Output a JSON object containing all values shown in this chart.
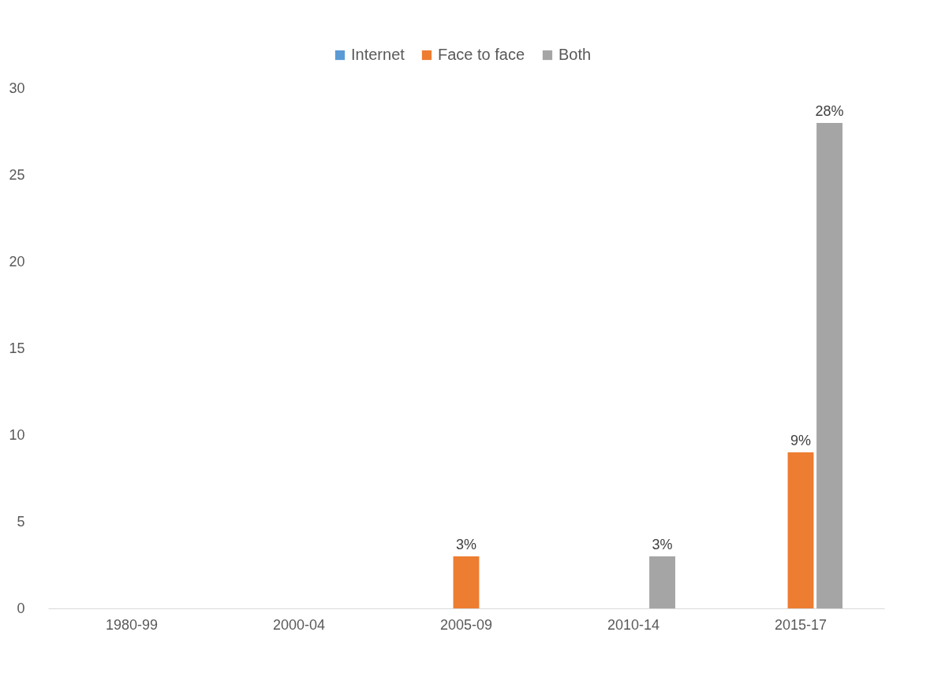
{
  "chart_data": {
    "type": "bar",
    "categories": [
      "1980-99",
      "2000-04",
      "2005-09",
      "2010-14",
      "2015-17"
    ],
    "series": [
      {
        "name": "Internet",
        "color": "#5b9bd5",
        "values": [
          0,
          0,
          0,
          0,
          0
        ],
        "value_labels": [
          null,
          null,
          null,
          null,
          null
        ]
      },
      {
        "name": "Face to face",
        "color": "#ed7d31",
        "values": [
          0,
          0,
          3,
          0,
          9
        ],
        "value_labels": [
          null,
          null,
          "3%",
          null,
          "9%"
        ]
      },
      {
        "name": "Both",
        "color": "#a5a5a5",
        "values": [
          0,
          0,
          0,
          3,
          28
        ],
        "value_labels": [
          null,
          null,
          null,
          "3%",
          "28%"
        ]
      }
    ],
    "ylim": [
      0,
      30
    ],
    "yticks": [
      0,
      5,
      10,
      15,
      20,
      25,
      30
    ],
    "grid": false,
    "legend": "top"
  }
}
